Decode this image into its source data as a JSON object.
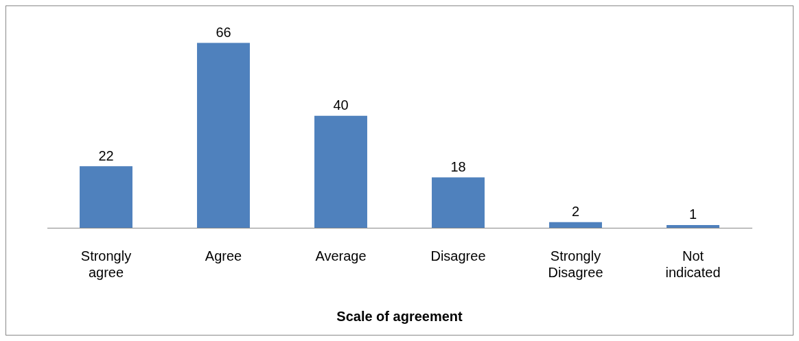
{
  "chart_data": {
    "type": "bar",
    "xlabel": "Scale of agreement",
    "categories": [
      "Strongly agree",
      "Agree",
      "Average",
      "Disagree",
      "Strongly Disagree",
      "Not indicated"
    ],
    "values": [
      22,
      66,
      40,
      18,
      2,
      1
    ],
    "color": "#4f81bd",
    "data_labels": true,
    "grid": false,
    "legend": false
  }
}
